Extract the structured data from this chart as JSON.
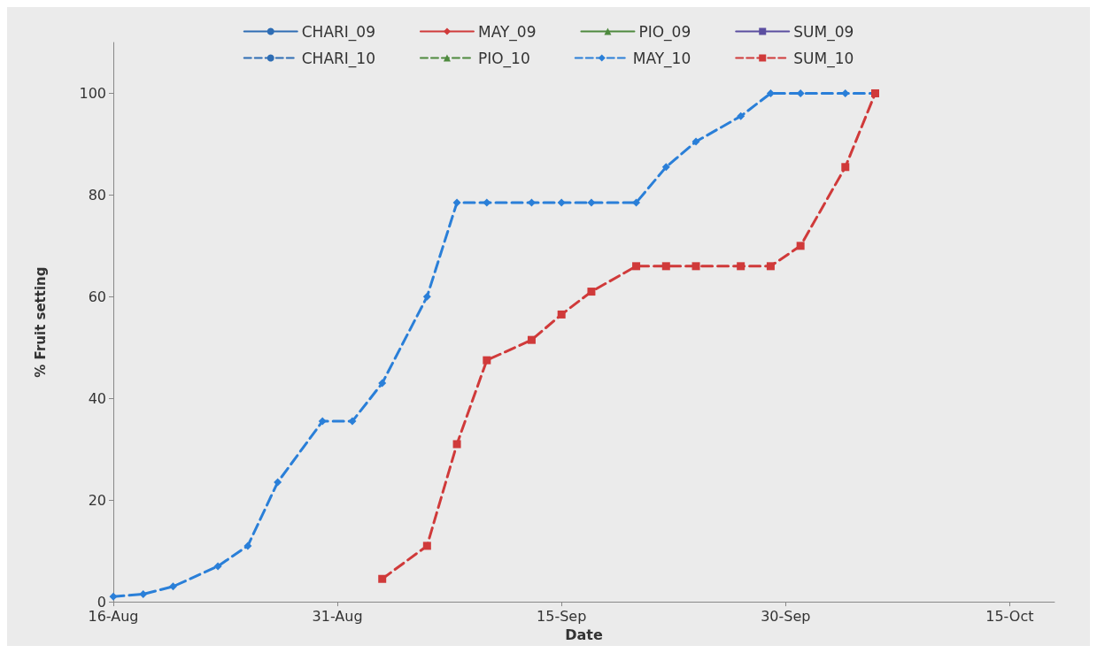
{
  "chart_data": {
    "type": "line",
    "xlabel": "Date",
    "ylabel": "% Fruit setting",
    "xlim": [
      "--08-16",
      "--10-18"
    ],
    "xticks": [
      {
        "value": "--08-16",
        "label": "16-Aug"
      },
      {
        "value": "--08-31",
        "label": "31-Aug"
      },
      {
        "value": "--09-15",
        "label": "15-Sep"
      },
      {
        "value": "--09-30",
        "label": "30-Sep"
      },
      {
        "value": "--10-15",
        "label": "15-Oct"
      }
    ],
    "ylim": [
      0,
      110
    ],
    "yticks": [
      0,
      20,
      40,
      60,
      80,
      100
    ],
    "grid": false,
    "legend": "top",
    "series": [
      {
        "name": "CHARI_09",
        "color": "#2e6db4",
        "marker": "circle",
        "line_style": "solid"
      },
      {
        "name": "MAY_09",
        "color": "#d03a3a",
        "marker": "diamond",
        "line_style": "solid"
      },
      {
        "name": "PIO_09",
        "color": "#4e8a3e",
        "marker": "triangle",
        "line_style": "solid"
      },
      {
        "name": "SUM_09",
        "color": "#5b4ea0",
        "marker": "square",
        "line_style": "solid"
      },
      {
        "name": "CHARI_10",
        "color": "#2e6db4",
        "marker": "circle",
        "line_style": "dashed"
      },
      {
        "name": "PIO_10",
        "color": "#4e8a3e",
        "marker": "triangle",
        "line_style": "dashed"
      },
      {
        "name": "MAY_10",
        "color": "#2a7fd8",
        "marker": "diamond",
        "line_style": "dashed",
        "x": [
          "--08-16",
          "--08-18",
          "--08-20",
          "--08-23",
          "--08-25",
          "--08-27",
          "--08-30",
          "--09-01",
          "--09-03",
          "--09-06",
          "--09-08",
          "--09-10",
          "--09-13",
          "--09-15",
          "--09-17",
          "--09-20",
          "--09-22",
          "--09-24",
          "--09-27",
          "--09-29",
          "--10-01",
          "--10-04",
          "--10-06"
        ],
        "values": [
          1,
          1.5,
          3,
          7,
          11,
          23.5,
          35.5,
          35.5,
          43,
          60,
          78.5,
          78.5,
          78.5,
          78.5,
          78.5,
          78.5,
          85.5,
          90.5,
          95.5,
          100,
          100,
          100,
          100
        ]
      },
      {
        "name": "SUM_10",
        "color": "#d03a3a",
        "marker": "square",
        "line_style": "dashed",
        "x": [
          "--09-03",
          "--09-06",
          "--09-08",
          "--09-10",
          "--09-13",
          "--09-15",
          "--09-17",
          "--09-20",
          "--09-22",
          "--09-24",
          "--09-27",
          "--09-29",
          "--10-01",
          "--10-04",
          "--10-06"
        ],
        "values": [
          4.5,
          11,
          31,
          47.5,
          51.5,
          56.5,
          61,
          66,
          66,
          66,
          66,
          66,
          70,
          85.5,
          100
        ]
      }
    ]
  }
}
